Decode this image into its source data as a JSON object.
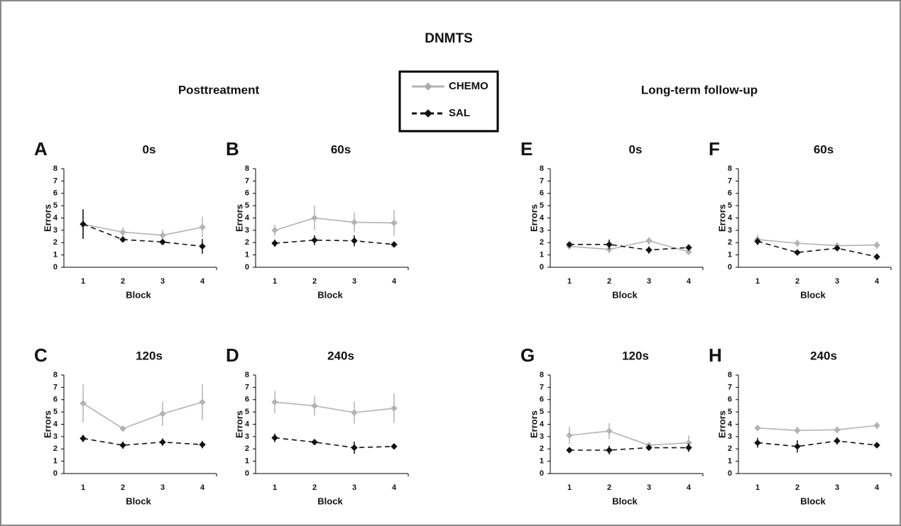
{
  "figure": {
    "title": "DNMTS",
    "sections": [
      "Posttreatment",
      "Long-term follow-up"
    ]
  },
  "chart_data": [
    {
      "type": "line",
      "label": "A",
      "title": "0s",
      "x_label": "Block",
      "y_label": "Errors",
      "categories": [
        1,
        2,
        3,
        4
      ],
      "ylim": [
        0,
        8
      ],
      "yticks": [
        0,
        1,
        2,
        3,
        4,
        5,
        6,
        7,
        8
      ],
      "series": [
        {
          "name": "CHEMO",
          "color": "#b3b3b3",
          "dashed": false,
          "values": [
            3.5,
            2.85,
            2.6,
            3.25
          ],
          "errors": [
            1.2,
            0.4,
            0.45,
            0.85
          ]
        },
        {
          "name": "SAL",
          "color": "#111111",
          "dashed": true,
          "values": [
            3.5,
            2.25,
            2.05,
            1.7
          ],
          "errors": [
            1.2,
            0.2,
            0.15,
            0.6
          ]
        }
      ]
    },
    {
      "type": "line",
      "label": "B",
      "title": "60s",
      "x_label": "Block",
      "y_label": "Errors",
      "categories": [
        1,
        2,
        3,
        4
      ],
      "ylim": [
        0,
        8
      ],
      "yticks": [
        0,
        1,
        2,
        3,
        4,
        5,
        6,
        7,
        8
      ],
      "series": [
        {
          "name": "CHEMO",
          "color": "#b3b3b3",
          "dashed": false,
          "values": [
            3.0,
            4.0,
            3.65,
            3.6
          ],
          "errors": [
            0.45,
            1.0,
            0.8,
            1.05
          ]
        },
        {
          "name": "SAL",
          "color": "#111111",
          "dashed": true,
          "values": [
            1.95,
            2.2,
            2.15,
            1.85
          ],
          "errors": [
            0.3,
            0.4,
            0.45,
            0.1
          ]
        }
      ]
    },
    {
      "type": "line",
      "label": "C",
      "title": "120s",
      "x_label": "Block",
      "y_label": "Errors",
      "categories": [
        1,
        2,
        3,
        4
      ],
      "ylim": [
        0,
        8
      ],
      "yticks": [
        0,
        1,
        2,
        3,
        4,
        5,
        6,
        7,
        8
      ],
      "series": [
        {
          "name": "CHEMO",
          "color": "#b3b3b3",
          "dashed": false,
          "values": [
            5.7,
            3.65,
            4.85,
            5.8
          ],
          "errors": [
            1.55,
            0.25,
            1.0,
            1.45
          ]
        },
        {
          "name": "SAL",
          "color": "#111111",
          "dashed": true,
          "values": [
            2.85,
            2.3,
            2.55,
            2.35
          ],
          "errors": [
            0.3,
            0.3,
            0.3,
            0.3
          ]
        }
      ]
    },
    {
      "type": "line",
      "label": "D",
      "title": "240s",
      "x_label": "Block",
      "y_label": "Errors",
      "categories": [
        1,
        2,
        3,
        4
      ],
      "ylim": [
        0,
        8
      ],
      "yticks": [
        0,
        1,
        2,
        3,
        4,
        5,
        6,
        7,
        8
      ],
      "series": [
        {
          "name": "CHEMO",
          "color": "#b3b3b3",
          "dashed": false,
          "values": [
            5.8,
            5.5,
            4.95,
            5.3
          ],
          "errors": [
            0.9,
            0.8,
            0.9,
            1.2
          ]
        },
        {
          "name": "SAL",
          "color": "#111111",
          "dashed": true,
          "values": [
            2.9,
            2.55,
            2.1,
            2.2
          ],
          "errors": [
            0.35,
            0.2,
            0.5,
            0.2
          ]
        }
      ]
    },
    {
      "type": "line",
      "label": "E",
      "title": "0s",
      "x_label": "Block",
      "y_label": "Errors",
      "categories": [
        1,
        2,
        3,
        4
      ],
      "ylim": [
        0,
        8
      ],
      "yticks": [
        0,
        1,
        2,
        3,
        4,
        5,
        6,
        7,
        8
      ],
      "series": [
        {
          "name": "CHEMO",
          "color": "#b3b3b3",
          "dashed": false,
          "values": [
            1.7,
            1.45,
            2.15,
            1.25
          ],
          "errors": [
            0.2,
            0.3,
            0.3,
            0.25
          ]
        },
        {
          "name": "SAL",
          "color": "#111111",
          "dashed": true,
          "values": [
            1.85,
            1.85,
            1.4,
            1.6
          ],
          "errors": [
            0.2,
            0.4,
            0.3,
            0.25
          ]
        }
      ]
    },
    {
      "type": "line",
      "label": "F",
      "title": "60s",
      "x_label": "Block",
      "y_label": "Errors",
      "categories": [
        1,
        2,
        3,
        4
      ],
      "ylim": [
        0,
        8
      ],
      "yticks": [
        0,
        1,
        2,
        3,
        4,
        5,
        6,
        7,
        8
      ],
      "series": [
        {
          "name": "CHEMO",
          "color": "#b3b3b3",
          "dashed": false,
          "values": [
            2.25,
            1.95,
            1.75,
            1.8
          ],
          "errors": [
            0.4,
            0.3,
            0.25,
            0.3
          ]
        },
        {
          "name": "SAL",
          "color": "#111111",
          "dashed": true,
          "values": [
            2.1,
            1.2,
            1.55,
            0.85
          ],
          "errors": [
            0.3,
            0.2,
            0.2,
            0.25
          ]
        }
      ]
    },
    {
      "type": "line",
      "label": "G",
      "title": "120s",
      "x_label": "Block",
      "y_label": "Errors",
      "categories": [
        1,
        2,
        3,
        4
      ],
      "ylim": [
        0,
        8
      ],
      "yticks": [
        0,
        1,
        2,
        3,
        4,
        5,
        6,
        7,
        8
      ],
      "series": [
        {
          "name": "CHEMO",
          "color": "#b3b3b3",
          "dashed": false,
          "values": [
            3.1,
            3.45,
            2.3,
            2.5
          ],
          "errors": [
            0.7,
            0.65,
            0.2,
            0.6
          ]
        },
        {
          "name": "SAL",
          "color": "#111111",
          "dashed": true,
          "values": [
            1.9,
            1.9,
            2.1,
            2.1
          ],
          "errors": [
            0.2,
            0.35,
            0.2,
            0.35
          ]
        }
      ]
    },
    {
      "type": "line",
      "label": "H",
      "title": "240s",
      "x_label": "Block",
      "y_label": "Errors",
      "categories": [
        1,
        2,
        3,
        4
      ],
      "ylim": [
        0,
        8
      ],
      "yticks": [
        0,
        1,
        2,
        3,
        4,
        5,
        6,
        7,
        8
      ],
      "series": [
        {
          "name": "CHEMO",
          "color": "#b3b3b3",
          "dashed": false,
          "values": [
            3.7,
            3.5,
            3.55,
            3.9
          ],
          "errors": [
            0.2,
            0.3,
            0.2,
            0.3
          ]
        },
        {
          "name": "SAL",
          "color": "#111111",
          "dashed": true,
          "values": [
            2.5,
            2.2,
            2.65,
            2.3
          ],
          "errors": [
            0.4,
            0.5,
            0.3,
            0.2
          ]
        }
      ]
    }
  ]
}
